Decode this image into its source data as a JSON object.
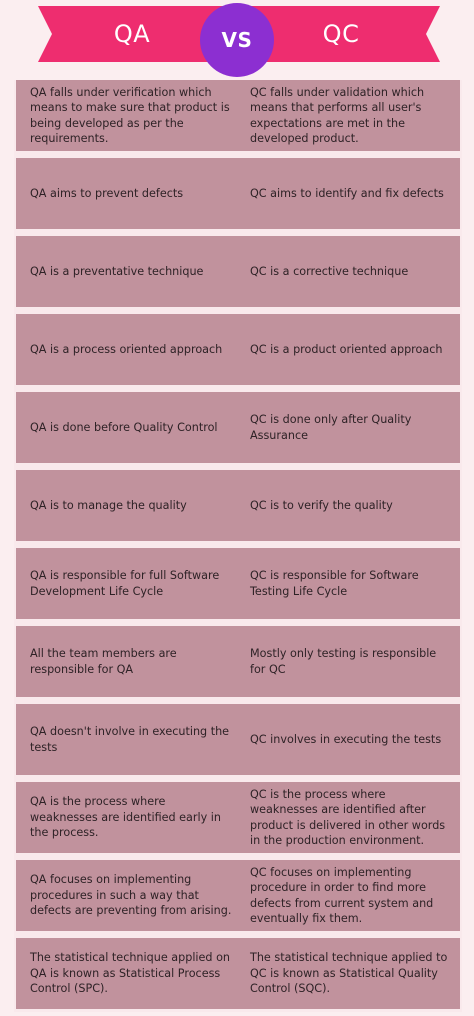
{
  "header": {
    "left_label": "QA",
    "vs_label": "VS",
    "right_label": "QC",
    "colors": {
      "ribbon": "#ee2d6f",
      "badge": "#8c2fd1",
      "cell": "#c1929d"
    }
  },
  "rows": [
    {
      "qa": "QA falls under verification which means to make sure that product is being developed as per the requirements.",
      "qc": "QC falls under validation which means that performs all user's expectations are met in the developed product."
    },
    {
      "qa": "QA aims to prevent defects",
      "qc": "QC aims to identify and fix defects"
    },
    {
      "qa": "QA is a preventative technique",
      "qc": "QC is a corrective technique"
    },
    {
      "qa": "QA is a process oriented approach",
      "qc": "QC is a product oriented approach"
    },
    {
      "qa": "QA is done before Quality Control",
      "qc": "QC is done only after Quality Assurance"
    },
    {
      "qa": "QA is to manage the quality",
      "qc": "QC is to verify the quality"
    },
    {
      "qa": "QA is responsible for full Software Development Life Cycle",
      "qc": "QC is responsible for Software Testing Life Cycle"
    },
    {
      "qa": "All the team members are responsible for QA",
      "qc": "Mostly only testing is responsible for QC"
    },
    {
      "qa": "QA doesn't involve in executing the tests",
      "qc": "QC involves in executing the tests"
    },
    {
      "qa": "QA is the process where weaknesses are identified early in the process.",
      "qc": "QC is the process where weaknesses are identified after product is delivered in other words in the production environment."
    },
    {
      "qa": "QA focuses on implementing procedures in such a way that defects are preventing from arising.",
      "qc": "QC focuses on implementing procedure in order to find more defects from current system and eventually fix them."
    },
    {
      "qa": "The statistical technique applied on QA is known as Statistical Process Control (SPC).",
      "qc": "The statistical technique applied to QC is known as Statistical Quality Control (SQC)."
    }
  ]
}
